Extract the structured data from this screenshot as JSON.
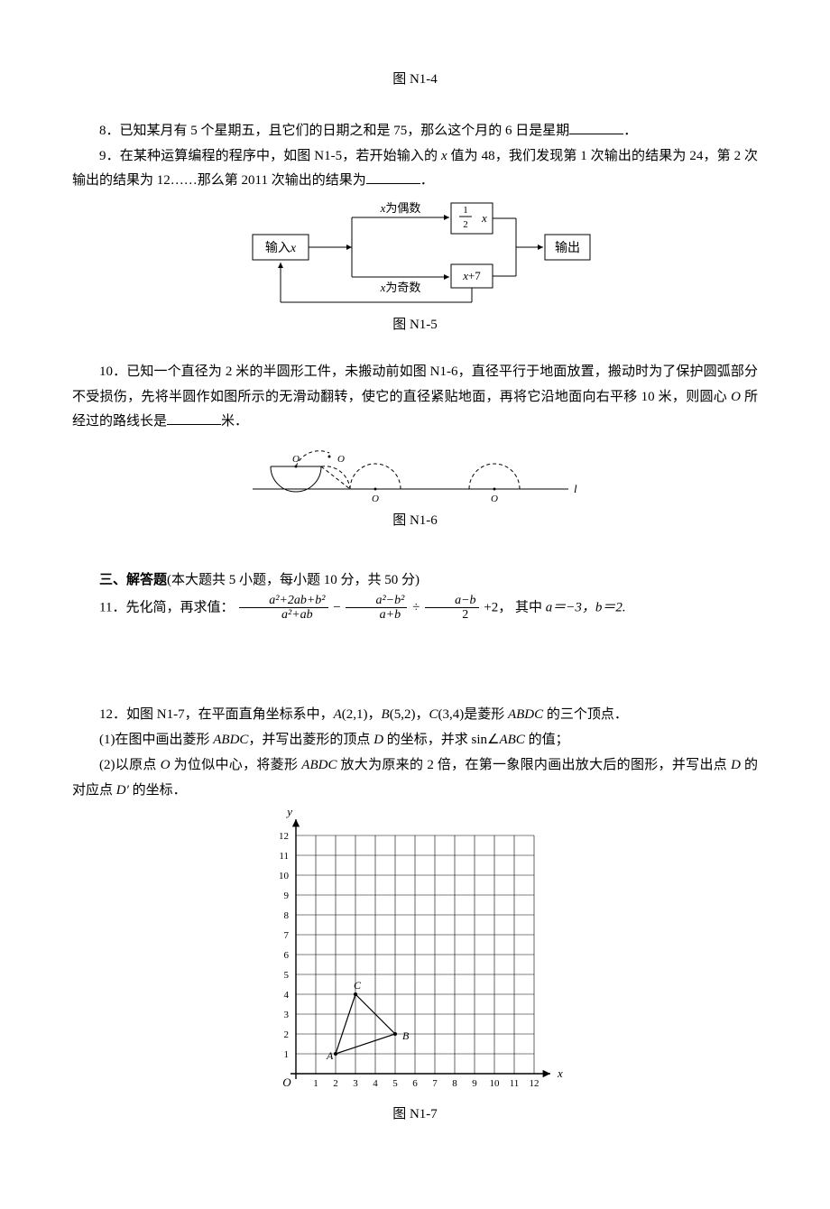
{
  "fig_top_caption": "图 N1-4",
  "q8": {
    "num": "8．",
    "text_a": "已知某月有 5 个星期五，且它们的日期之和是 75，那么这个月的 6 日是星期",
    "text_b": "．"
  },
  "q9": {
    "num": "9．",
    "text_a": "在某种运算编程的程序中，如图 N1-5，若开始输入的 ",
    "xvar": "x",
    "text_b": " 值为 48，我们发现第 1 次输出的结果为 24，第 2 次输出的结果为 12……那么第 2011 次输出的结果为",
    "text_c": "．"
  },
  "fig5": {
    "input_label_a": "输入",
    "input_label_b": "x",
    "even_label_a": "x",
    "even_label_b": "为偶数",
    "odd_label_a": "x",
    "odd_label_b": "为奇数",
    "half_num": "1",
    "half_den": "2",
    "half_x": "x",
    "plus7_a": "x",
    "plus7_b": "+7",
    "output_label": "输出",
    "caption": "图 N1-5",
    "box_stroke": "#000",
    "box_fill": "#fff",
    "line_color": "#000",
    "font_size": 14
  },
  "q10": {
    "num": "10．",
    "text_a": "已知一个直径为 2 米的半圆形工件，未搬动前如图 N1-6，直径平行于地面放置，搬动时为了保护圆弧部分不受损伤，先将半圆作如图所示的无滑动翻转，使它的直径紧贴地面，再将它沿地面向右平移 10 米，则圆心 ",
    "o_it": "O",
    "text_b": " 所经过的路线长是",
    "text_c": "米．"
  },
  "fig6": {
    "O": "O",
    "l": "l",
    "caption": "图 N1-6",
    "line_color": "#000"
  },
  "sec3": {
    "title": "三、解答题",
    "sub": "(本大题共 5 小题，每小题 10 分，共 50 分)"
  },
  "q11": {
    "num": "11．",
    "lead": "先化简，再求值：",
    "f1_num": "a²+2ab+b²",
    "f1_den": "a²+ab",
    "minus": "−",
    "f2_num": "a²−b²",
    "f2_den": "a+b",
    "div": "÷",
    "f3_num": "a−b",
    "f3_den": "2",
    "plus2": "+2，",
    "where": "其中 ",
    "a_eq": "a＝−3，",
    "b_eq": "b＝2."
  },
  "q12": {
    "num": "12．",
    "text_a": "如图 N1-7，在平面直角坐标系中，",
    "A": "A",
    "Apt": "(2,1)，",
    "B": "B",
    "Bpt": "(5,2)，",
    "C": "C",
    "Cpt": "(3,4)",
    "text_b": "是菱形 ",
    "ABDC": "ABDC",
    "text_c": " 的三个顶点．",
    "p1_a": "(1)在图中画出菱形 ",
    "p1_b": "ABDC",
    "p1_c": "，并写出菱形的顶点 ",
    "D1": "D",
    "p1_d": " 的坐标，并求 sin∠",
    "ABC": "ABC",
    "p1_e": " 的值；",
    "p2_a": "(2)以原点 ",
    "O2": "O",
    "p2_b": " 为位似中心，将菱形 ",
    "p2_c": "ABDC",
    "p2_d": " 放大为原来的 2 倍，在第一象限内画出放大后的图形，并写出点 ",
    "D2": "D",
    "p2_e": " 的对应点 ",
    "Dp": "D′",
    "p2_f": " 的坐标．"
  },
  "fig7": {
    "y": "y",
    "x": "x",
    "O": "O",
    "A": "A",
    "B": "B",
    "C": "C",
    "xticks": [
      "1",
      "2",
      "3",
      "4",
      "5",
      "6",
      "7",
      "8",
      "9",
      "10",
      "11",
      "12"
    ],
    "yticks": [
      "1",
      "2",
      "3",
      "4",
      "5",
      "6",
      "7",
      "8",
      "9",
      "10",
      "11",
      "12"
    ],
    "caption": "图 N1-7",
    "grid_color": "#000",
    "axis_color": "#000",
    "cell": 22,
    "cols": 12,
    "rows": 12,
    "A_xy": [
      2,
      1
    ],
    "B_xy": [
      5,
      2
    ],
    "C_xy": [
      3,
      4
    ]
  }
}
